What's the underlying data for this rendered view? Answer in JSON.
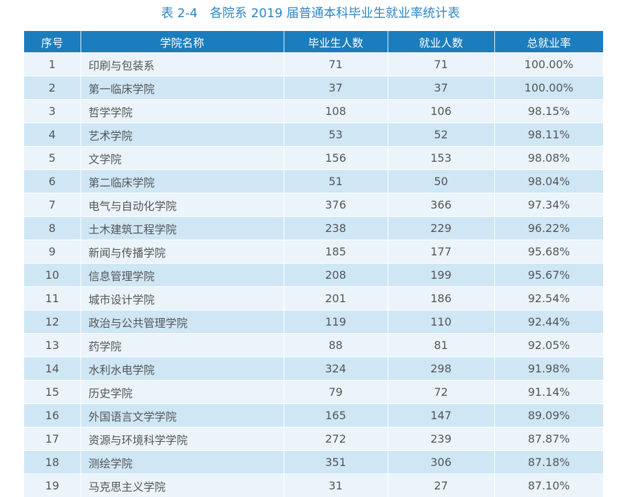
{
  "title": "表 2-4　各院系 2019 届普通本科毕业生就业率统计表",
  "table": {
    "headers": [
      "序号",
      "学院名称",
      "毕业生人数",
      "就业人数",
      "总就业率"
    ],
    "rows": [
      [
        "1",
        "印刷与包装系",
        "71",
        "71",
        "100.00%"
      ],
      [
        "2",
        "第一临床学院",
        "37",
        "37",
        "100.00%"
      ],
      [
        "3",
        "哲学学院",
        "108",
        "106",
        "98.15%"
      ],
      [
        "4",
        "艺术学院",
        "53",
        "52",
        "98.11%"
      ],
      [
        "5",
        "文学院",
        "156",
        "153",
        "98.08%"
      ],
      [
        "6",
        "第二临床学院",
        "51",
        "50",
        "98.04%"
      ],
      [
        "7",
        "电气与自动化学院",
        "376",
        "366",
        "97.34%"
      ],
      [
        "8",
        "土木建筑工程学院",
        "238",
        "229",
        "96.22%"
      ],
      [
        "9",
        "新闻与传播学院",
        "185",
        "177",
        "95.68%"
      ],
      [
        "10",
        "信息管理学院",
        "208",
        "199",
        "95.67%"
      ],
      [
        "11",
        "城市设计学院",
        "201",
        "186",
        "92.54%"
      ],
      [
        "12",
        "政治与公共管理学院",
        "119",
        "110",
        "92.44%"
      ],
      [
        "13",
        "药学院",
        "88",
        "81",
        "92.05%"
      ],
      [
        "14",
        "水利水电学院",
        "324",
        "298",
        "91.98%"
      ],
      [
        "15",
        "历史学院",
        "79",
        "72",
        "91.14%"
      ],
      [
        "16",
        "外国语言文学学院",
        "165",
        "147",
        "89.09%"
      ],
      [
        "17",
        "资源与环境科学学院",
        "272",
        "239",
        "87.87%"
      ],
      [
        "18",
        "测绘学院",
        "351",
        "306",
        "87.18%"
      ],
      [
        "19",
        "马克思主义学院",
        "31",
        "27",
        "87.10%"
      ]
    ]
  },
  "colors": {
    "header": "#1b7dbd",
    "title": "#2d86c4",
    "row_light": "#eaf4fa",
    "row_dark": "#cfe6f5"
  }
}
